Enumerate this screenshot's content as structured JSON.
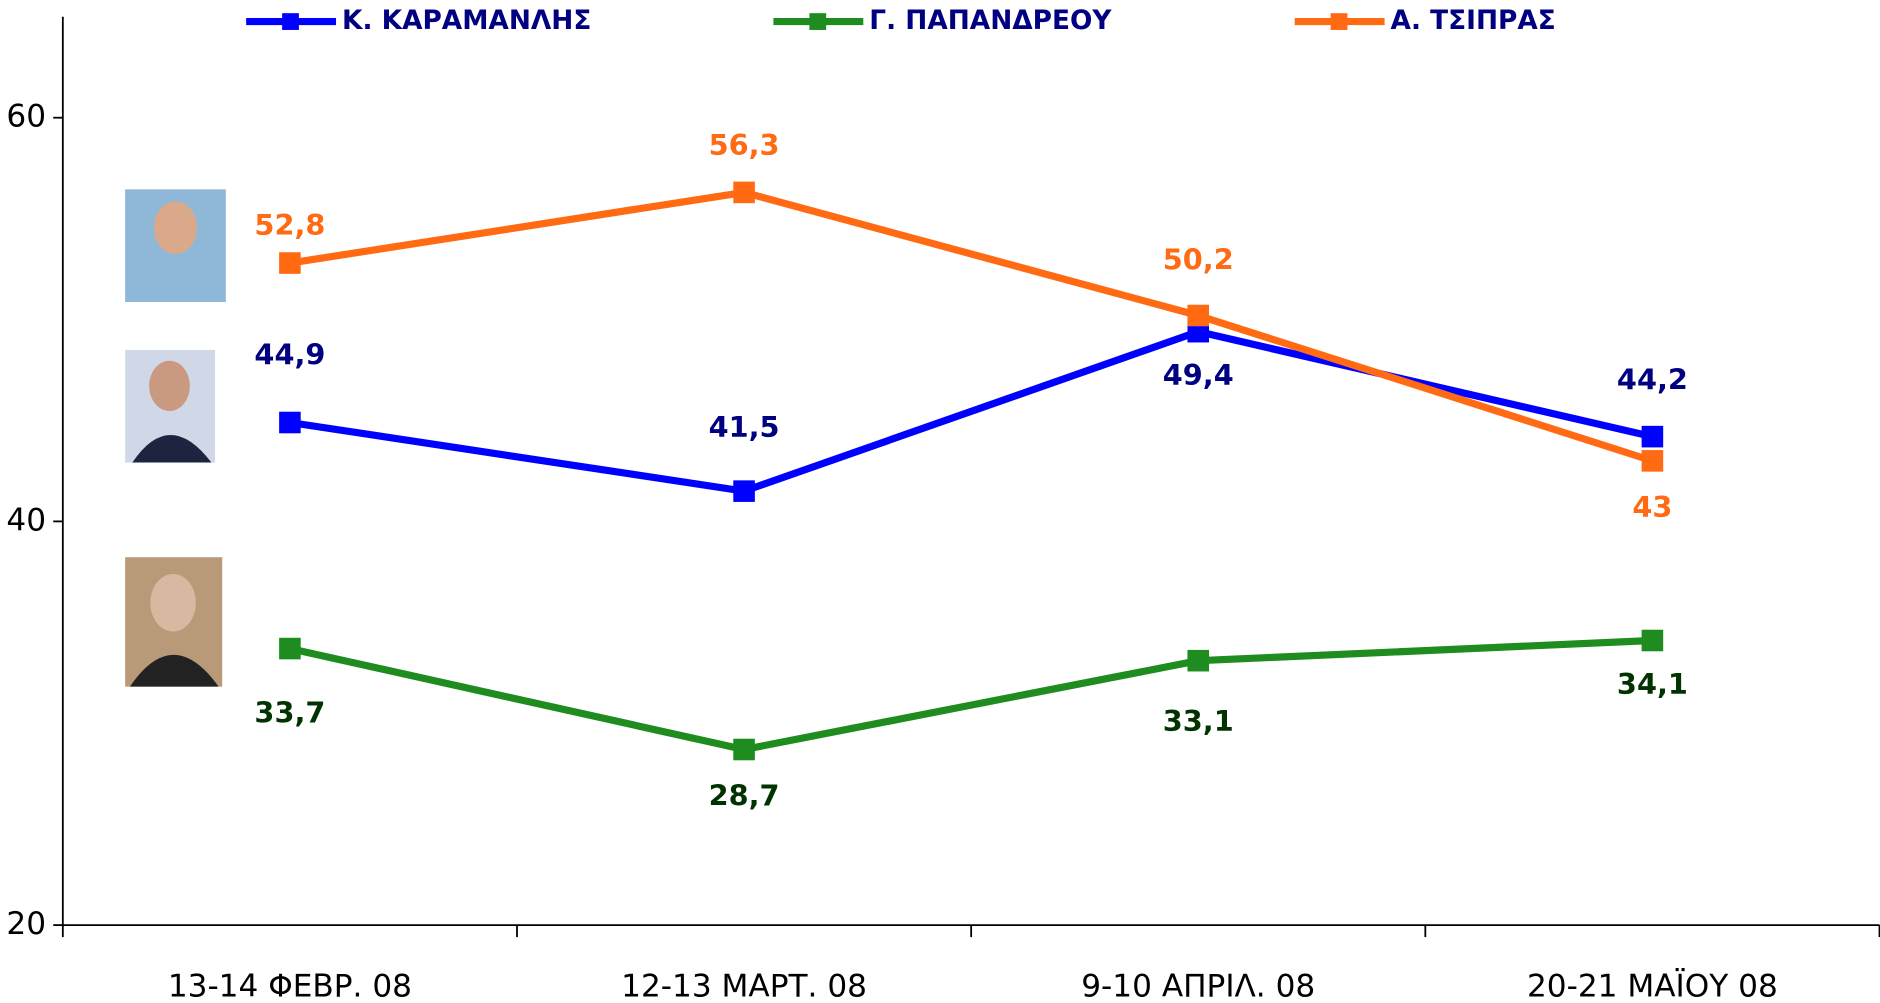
{
  "chart_data": {
    "type": "line",
    "categories": [
      "13-14 ΦΕΒΡ. 08",
      "12-13 ΜΑΡΤ. 08",
      "9-10 ΑΠΡΙΛ. 08",
      "20-21 ΜΑΪΟΥ 08"
    ],
    "series": [
      {
        "name": "Κ. ΚΑΡΑΜΑΝΛΗΣ",
        "color": "#0000ff",
        "label_color": "#000080",
        "values": [
          44.9,
          41.5,
          49.4,
          44.2
        ],
        "value_labels": [
          "44,9",
          "41,5",
          "49,4",
          "44,2"
        ]
      },
      {
        "name": "Γ. ΠΑΠΑΝΔΡΕΟΥ",
        "color": "#1e8c1e",
        "label_color": "#003300",
        "values": [
          33.7,
          28.7,
          33.1,
          34.1
        ],
        "value_labels": [
          "33,7",
          "28,7",
          "33,1",
          "34,1"
        ]
      },
      {
        "name": "Α. ΤΣΙΠΡΑΣ",
        "color": "#ff6a13",
        "label_color": "#ff6a13",
        "values": [
          52.8,
          56.3,
          50.2,
          43
        ],
        "value_labels": [
          "52,8",
          "56,3",
          "50,2",
          "43"
        ]
      }
    ],
    "ylim": [
      20,
      65
    ],
    "yticks": [
      20,
      40,
      60
    ]
  }
}
